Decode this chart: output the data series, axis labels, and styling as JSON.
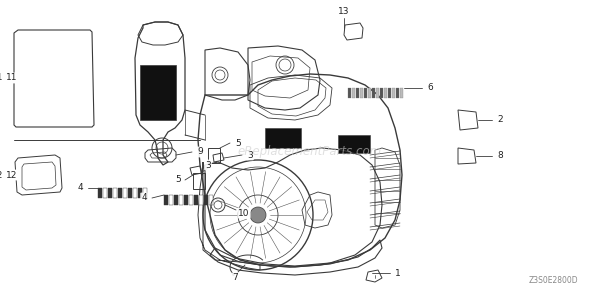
{
  "bg_color": "#ffffff",
  "line_color": "#3a3a3a",
  "label_color": "#222222",
  "watermark_color": "#cccccc",
  "watermark_text": "eReplacementParts.com",
  "diagram_code": "Z3S0E2800D",
  "figsize": [
    5.9,
    2.95
  ],
  "dpi": 100,
  "labels": {
    "1": [
      393,
      268,
      370,
      256
    ],
    "2": [
      488,
      120,
      468,
      128
    ],
    "3a": [
      218,
      155,
      240,
      148
    ],
    "3b": [
      192,
      170,
      200,
      163
    ],
    "4a": [
      100,
      186,
      118,
      183
    ],
    "4b": [
      168,
      195,
      186,
      192
    ],
    "5a": [
      202,
      162,
      215,
      153
    ],
    "5b": [
      192,
      178,
      204,
      172
    ],
    "6": [
      420,
      93,
      402,
      100
    ],
    "7": [
      248,
      268,
      255,
      258
    ],
    "8": [
      488,
      155,
      468,
      160
    ],
    "9": [
      172,
      148,
      190,
      145
    ],
    "10": [
      212,
      210,
      225,
      202
    ],
    "11": [
      38,
      72,
      52,
      80
    ],
    "12": [
      28,
      172,
      44,
      172
    ],
    "13": [
      348,
      28,
      358,
      40
    ]
  }
}
